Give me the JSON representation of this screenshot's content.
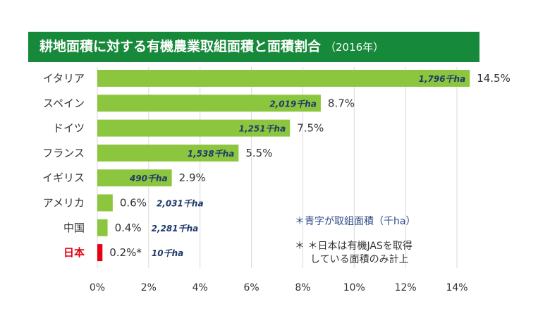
{
  "chart_data": {
    "type": "bar",
    "orientation": "horizontal",
    "title": "耕地面積に対する有機農業取組面積と面積割合",
    "subtitle": "（2016年）",
    "categories": [
      "イタリア",
      "スペイン",
      "ドイツ",
      "フランス",
      "イギリス",
      "アメリカ",
      "中国",
      "日本"
    ],
    "values": [
      14.5,
      8.7,
      7.5,
      5.5,
      2.9,
      0.6,
      0.4,
      0.2
    ],
    "value_labels": [
      "14.5%",
      "8.7%",
      "7.5%",
      "5.5%",
      "2.9%",
      "0.6%",
      "0.4%",
      "0.2%*"
    ],
    "area_labels": [
      "1,796千ha",
      "2,019千ha",
      "1,251千ha",
      "1,538千ha",
      "490千ha",
      "2,031千ha",
      "2,281千ha",
      "10千ha"
    ],
    "xlim": [
      0,
      15
    ],
    "xticks": [
      "0%",
      "2%",
      "4%",
      "6%",
      "8%",
      "10%",
      "12%",
      "14%"
    ],
    "xtick_values": [
      0,
      2,
      4,
      6,
      8,
      10,
      12,
      14
    ],
    "grid": true,
    "colors": {
      "bar": "#8cc63f",
      "highlight_bar": "#e60012",
      "title_bg": "#17893a",
      "area_label": "#1f3a6b",
      "highlight_label": "#e60012"
    },
    "highlight_category": "日本",
    "annotations": [
      "＊青字が取組面積（千ha）",
      "＊ ＊日本は有機JASを取得",
      "している面積のみ計上"
    ]
  }
}
